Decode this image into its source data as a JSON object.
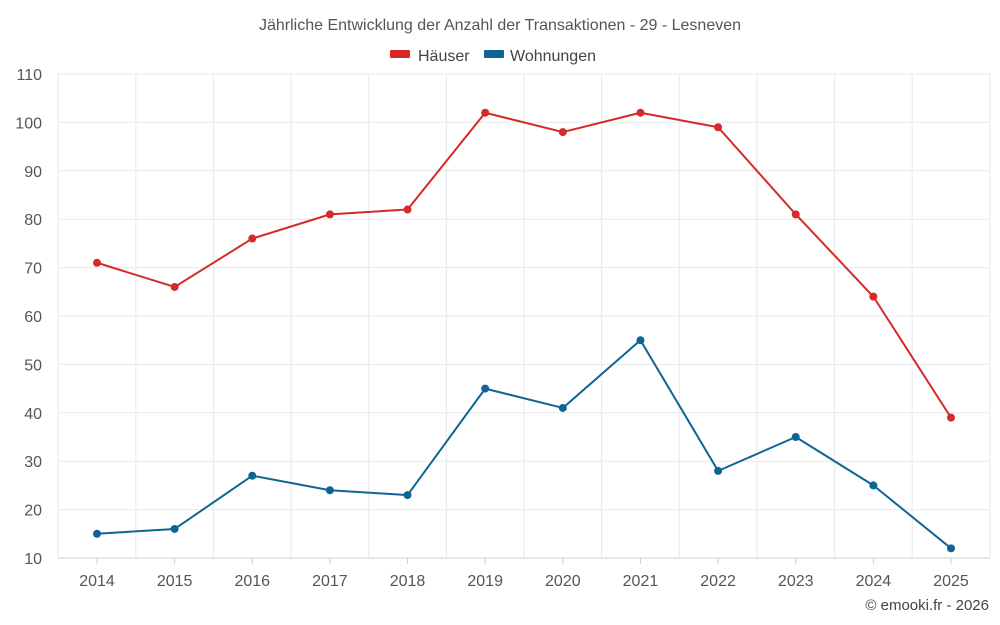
{
  "chart_data": {
    "type": "line",
    "title": "Jährliche Entwicklung der Anzahl der Transaktionen - 29 - Lesneven",
    "categories": [
      "2014",
      "2015",
      "2016",
      "2017",
      "2018",
      "2019",
      "2020",
      "2021",
      "2022",
      "2023",
      "2024",
      "2025"
    ],
    "series": [
      {
        "name": "Häuser",
        "color": "#d42a2a",
        "values": [
          71,
          66,
          76,
          81,
          82,
          102,
          98,
          102,
          99,
          81,
          64,
          39
        ]
      },
      {
        "name": "Wohnungen",
        "color": "#0f6496",
        "values": [
          15,
          16,
          27,
          24,
          23,
          45,
          41,
          55,
          28,
          35,
          25,
          12
        ]
      }
    ],
    "yticks": [
      10,
      20,
      30,
      40,
      50,
      60,
      70,
      80,
      90,
      100,
      110
    ],
    "ylim": [
      10,
      110
    ],
    "grid": true,
    "legend_position": "top-center",
    "xlabel": "",
    "ylabel": ""
  },
  "credit": "© emooki.fr - 2026"
}
